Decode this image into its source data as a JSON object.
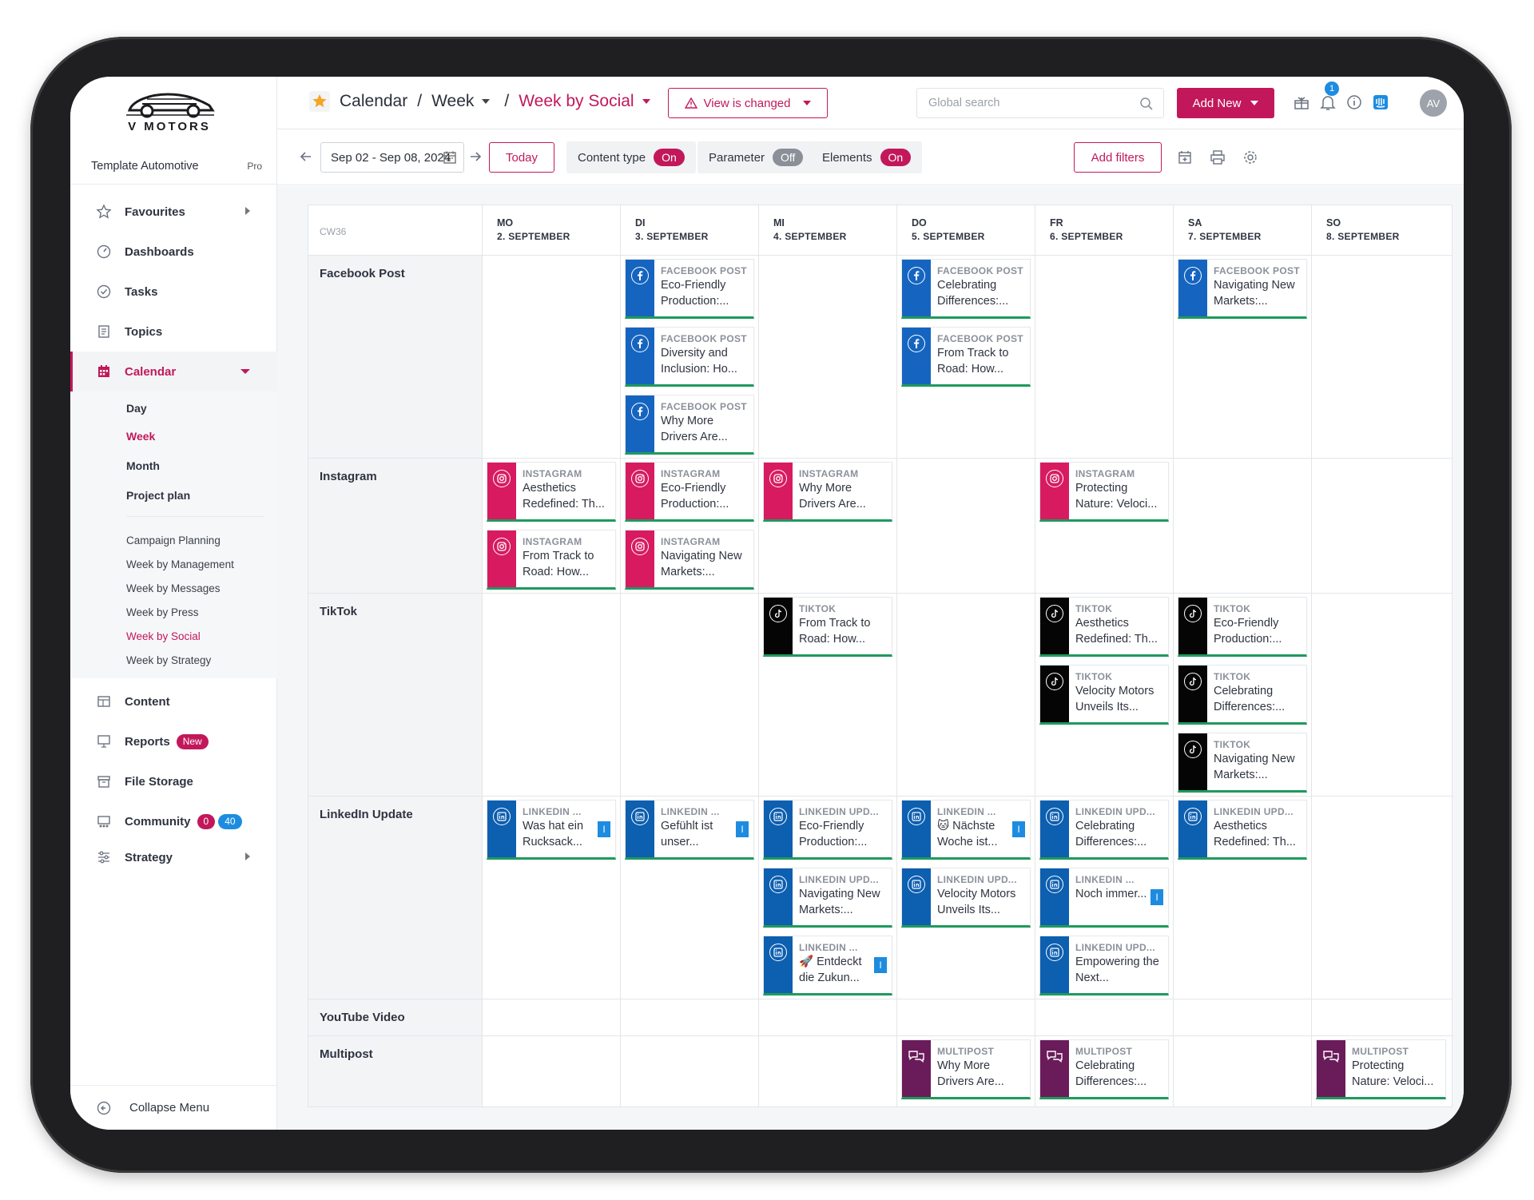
{
  "brand": {
    "name": "V MOTORS"
  },
  "workspace": {
    "name": "Template Automotive",
    "plan": "Pro"
  },
  "sidebar": {
    "items": [
      {
        "label": "Favourites",
        "icon": "star-outline-icon"
      },
      {
        "label": "Dashboards",
        "icon": "gauge-icon"
      },
      {
        "label": "Tasks",
        "icon": "check-circle-icon"
      },
      {
        "label": "Topics",
        "icon": "book-icon"
      },
      {
        "label": "Calendar",
        "icon": "calendar-icon"
      }
    ],
    "calendar_views": [
      "Day",
      "Week",
      "Month",
      "Project plan"
    ],
    "saved_views": [
      "Campaign Planning",
      "Week by Management",
      "Week by Messages",
      "Week by Press",
      "Week by Social",
      "Week by Strategy"
    ],
    "items_bottom": [
      {
        "label": "Content",
        "icon": "table-icon"
      },
      {
        "label": "Reports",
        "icon": "presentation-icon",
        "badge": "New"
      },
      {
        "label": "File Storage",
        "icon": "archive-icon"
      },
      {
        "label": "Community",
        "icon": "community-icon",
        "badge_red": "0",
        "badge_blue": "40"
      },
      {
        "label": "Strategy",
        "icon": "sliders-icon"
      }
    ],
    "collapse_label": "Collapse Menu"
  },
  "header": {
    "crumb1": "Calendar",
    "crumb2": "Week",
    "crumb3": "Week by Social",
    "view_changed": "View is changed",
    "search_placeholder": "Global search",
    "add_new": "Add New",
    "notifications": "1",
    "avatar": "AV"
  },
  "toolbar": {
    "date_range": "Sep 02 - Sep 08, 2024",
    "today": "Today",
    "content_type": "Content type",
    "content_type_state": "On",
    "parameter": "Parameter",
    "parameter_state": "Off",
    "elements": "Elements",
    "elements_state": "On",
    "add_filters": "Add filters"
  },
  "calendar": {
    "week_label": "CW36",
    "days": [
      {
        "name": "MO",
        "date": "2. SEPTEMBER"
      },
      {
        "name": "DI",
        "date": "3. SEPTEMBER"
      },
      {
        "name": "MI",
        "date": "4. SEPTEMBER"
      },
      {
        "name": "DO",
        "date": "5. SEPTEMBER"
      },
      {
        "name": "FR",
        "date": "6. SEPTEMBER"
      },
      {
        "name": "SA",
        "date": "7. SEPTEMBER"
      },
      {
        "name": "SO",
        "date": "8. SEPTEMBER"
      }
    ],
    "rows": [
      {
        "label": "Facebook Post",
        "kind": "facebook",
        "min_height": 207,
        "cells": [
          [],
          [
            {
              "type": "FACEBOOK POST",
              "title": "Eco-Friendly Production:..."
            },
            {
              "type": "FACEBOOK POST",
              "title": "Diversity and Inclusion: Ho..."
            },
            {
              "type": "FACEBOOK POST",
              "title": "Why More Drivers Are..."
            }
          ],
          [],
          [
            {
              "type": "FACEBOOK POST",
              "title": "Celebrating Differences:..."
            },
            {
              "type": "FACEBOOK POST",
              "title": "From Track to Road: How..."
            }
          ],
          [],
          [
            {
              "type": "FACEBOOK POST",
              "title": "Navigating New Markets:..."
            }
          ],
          []
        ]
      },
      {
        "label": "Instagram",
        "kind": "instagram",
        "min_height": 138,
        "cells": [
          [
            {
              "type": "INSTAGRAM",
              "title": "Aesthetics Redefined: Th..."
            },
            {
              "type": "INSTAGRAM",
              "title": "From Track to Road: How..."
            }
          ],
          [
            {
              "type": "INSTAGRAM",
              "title": "Eco-Friendly Production:..."
            },
            {
              "type": "INSTAGRAM",
              "title": "Navigating New Markets:..."
            }
          ],
          [
            {
              "type": "INSTAGRAM",
              "title": "Why More Drivers Are..."
            }
          ],
          [],
          [
            {
              "type": "INSTAGRAM",
              "title": "Protecting Nature: Veloci..."
            }
          ],
          [],
          []
        ]
      },
      {
        "label": "TikTok",
        "kind": "tiktok",
        "min_height": 207,
        "cells": [
          [],
          [],
          [
            {
              "type": "TIKTOK",
              "title": "From Track to Road: How..."
            }
          ],
          [],
          [
            {
              "type": "TIKTOK",
              "title": "Aesthetics Redefined: Th..."
            },
            {
              "type": "TIKTOK",
              "title": "Velocity Motors Unveils Its..."
            }
          ],
          [
            {
              "type": "TIKTOK",
              "title": "Eco-Friendly Production:..."
            },
            {
              "type": "TIKTOK",
              "title": "Celebrating Differences:..."
            },
            {
              "type": "TIKTOK",
              "title": "Navigating New Markets:..."
            }
          ],
          []
        ]
      },
      {
        "label": "LinkedIn Update",
        "kind": "linkedin",
        "min_height": 207,
        "cells": [
          [
            {
              "type": "LINKEDIN ...",
              "title": "Was hat ein Rucksack...",
              "flag": "I"
            }
          ],
          [
            {
              "type": "LINKEDIN ...",
              "title": "Gefühlt ist unser...",
              "flag": "I"
            }
          ],
          [
            {
              "type": "LINKEDIN UPD...",
              "title": "Eco-Friendly Production:..."
            },
            {
              "type": "LINKEDIN UPD...",
              "title": "Navigating New Markets:..."
            },
            {
              "type": "LINKEDIN ...",
              "title": "🚀 Entdeckt die Zukun...",
              "flag": "I"
            }
          ],
          [
            {
              "type": "LINKEDIN ...",
              "title": "🐱 Nächste Woche ist...",
              "flag": "I"
            },
            {
              "type": "LINKEDIN UPD...",
              "title": "Velocity Motors Unveils Its..."
            }
          ],
          [
            {
              "type": "LINKEDIN UPD...",
              "title": "Celebrating Differences:..."
            },
            {
              "type": "LINKEDIN ...",
              "title": "Noch immer...",
              "flag": "I"
            },
            {
              "type": "LINKEDIN UPD...",
              "title": "Empowering the Next..."
            }
          ],
          [
            {
              "type": "LINKEDIN UPD...",
              "title": "Aesthetics Redefined: Th..."
            }
          ],
          []
        ]
      },
      {
        "label": "YouTube Video",
        "kind": "youtube",
        "min_height": 34,
        "cells": [
          [],
          [],
          [],
          [],
          [],
          [],
          []
        ]
      },
      {
        "label": "Multipost",
        "kind": "multipost",
        "min_height": 89,
        "cells": [
          [],
          [],
          [],
          [
            {
              "type": "MULTIPOST",
              "title": "Why More Drivers Are..."
            }
          ],
          [
            {
              "type": "MULTIPOST",
              "title": "Celebrating Differences:..."
            }
          ],
          [],
          [
            {
              "type": "MULTIPOST",
              "title": "Protecting Nature: Veloci..."
            }
          ]
        ]
      }
    ]
  },
  "colors": {
    "accent": "#c2185b",
    "facebook": "#1565c0",
    "instagram": "#d81b60",
    "tiktok": "#050505",
    "linkedin": "#0d5fb0",
    "multipost": "#6a1b5a",
    "status_green": "#1f9a5d"
  }
}
